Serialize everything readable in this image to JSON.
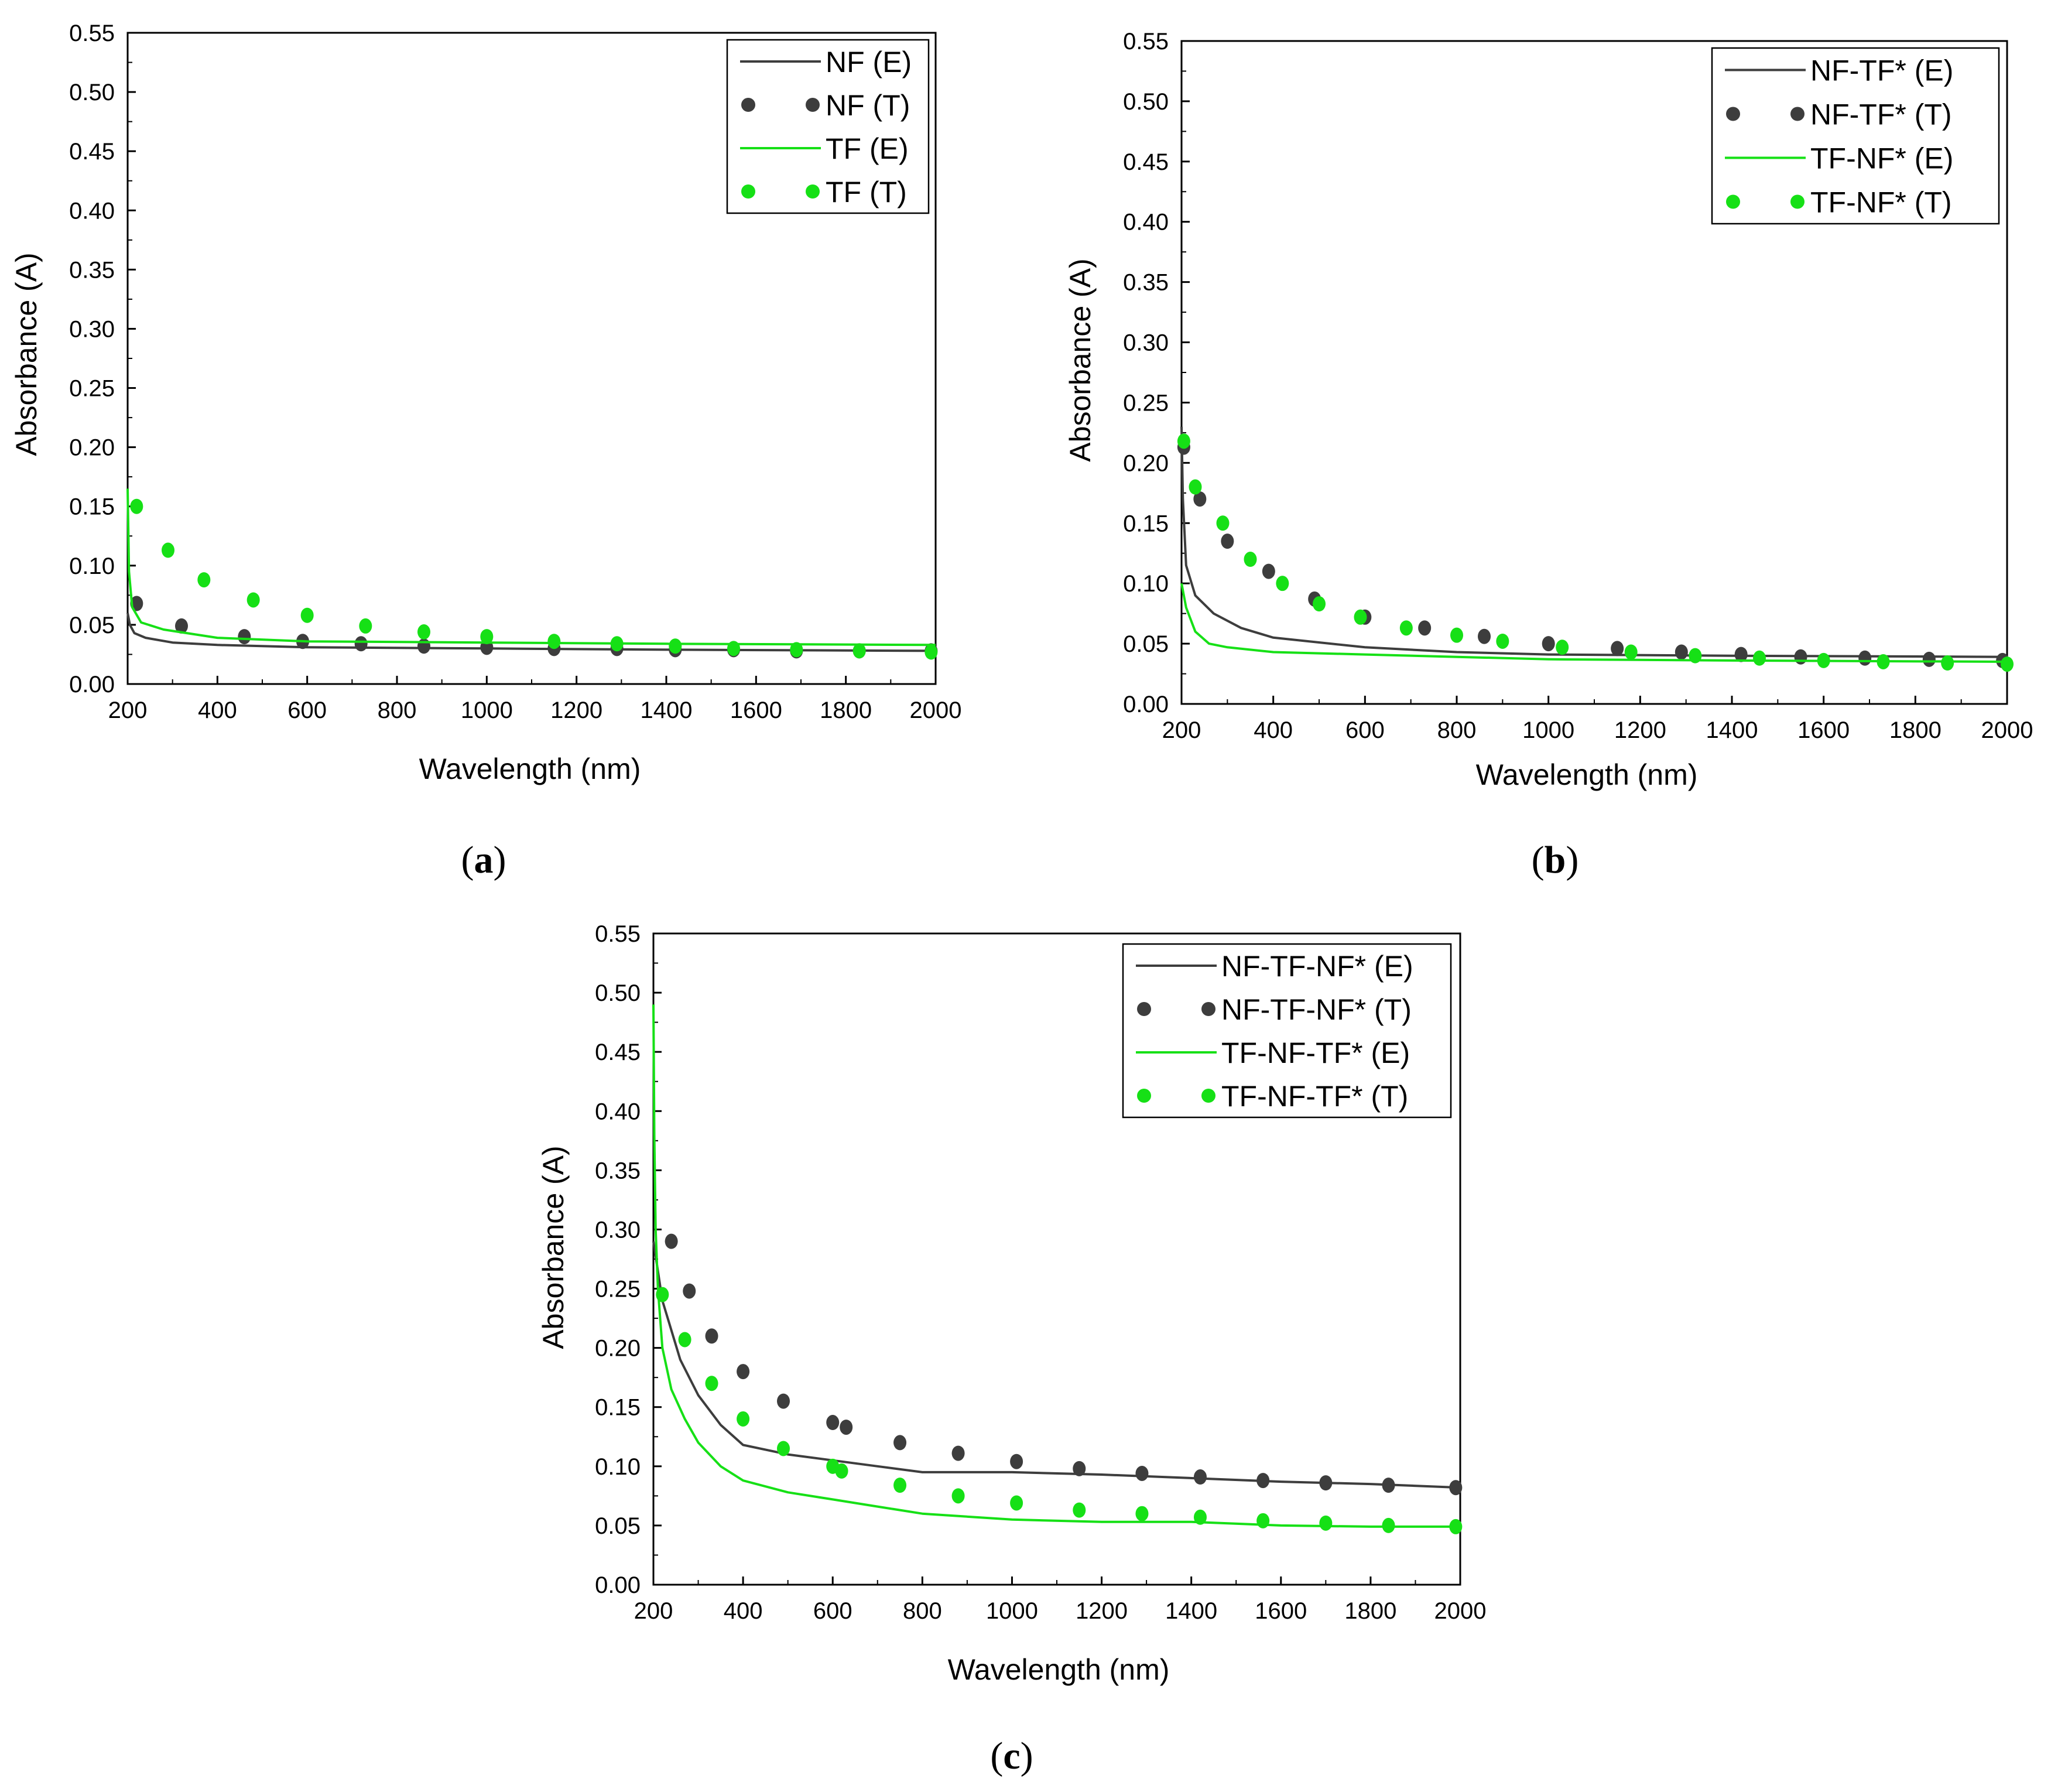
{
  "colors": {
    "dark": "#3d3d3d",
    "green": "#16e016"
  },
  "chart_data": [
    {
      "id": "a",
      "type": "line",
      "caption_letter": "a",
      "xlabel": "Wavelength (nm)",
      "ylabel": "Absorbance (A)",
      "xlim": [
        200,
        2000
      ],
      "ylim": [
        0,
        0.55
      ],
      "xticks": [
        "200",
        "400",
        "600",
        "800",
        "1000",
        "1200",
        "1400",
        "1600",
        "1800",
        "2000"
      ],
      "yticks": [
        "0.00",
        "0.05",
        "0.10",
        "0.15",
        "0.20",
        "0.25",
        "0.30",
        "0.35",
        "0.40",
        "0.45",
        "0.50",
        "0.55"
      ],
      "legend_position": "top-right",
      "series": [
        {
          "name": "NF (E)",
          "style": "solid",
          "color": "dark",
          "x": [
            200,
            205,
            215,
            240,
            300,
            400,
            600,
            1000,
            1400,
            2000
          ],
          "y": [
            0.06,
            0.05,
            0.043,
            0.039,
            0.035,
            0.033,
            0.031,
            0.03,
            0.029,
            0.028
          ]
        },
        {
          "name": "NF (T)",
          "style": "dotted",
          "color": "dark",
          "x": [
            220,
            320,
            460,
            590,
            720,
            860,
            1000,
            1150,
            1290,
            1420,
            1550,
            1690,
            1830,
            1990
          ],
          "y": [
            0.068,
            0.049,
            0.04,
            0.036,
            0.034,
            0.032,
            0.031,
            0.03,
            0.03,
            0.029,
            0.029,
            0.028,
            0.028,
            0.028
          ]
        },
        {
          "name": "TF (E)",
          "style": "solid",
          "color": "green",
          "x": [
            200,
            203,
            210,
            230,
            280,
            400,
            600,
            1000,
            1400,
            2000
          ],
          "y": [
            0.165,
            0.095,
            0.065,
            0.052,
            0.046,
            0.039,
            0.036,
            0.035,
            0.034,
            0.033
          ]
        },
        {
          "name": "TF (T)",
          "style": "dotted",
          "color": "green",
          "x": [
            220,
            290,
            370,
            480,
            600,
            730,
            860,
            1000,
            1150,
            1290,
            1420,
            1550,
            1690,
            1830,
            1990
          ],
          "y": [
            0.15,
            0.113,
            0.088,
            0.071,
            0.058,
            0.049,
            0.044,
            0.04,
            0.036,
            0.034,
            0.032,
            0.03,
            0.029,
            0.028,
            0.027
          ]
        }
      ]
    },
    {
      "id": "b",
      "type": "line",
      "caption_letter": "b",
      "xlabel": "Wavelength (nm)",
      "ylabel": "Absorbance (A)",
      "xlim": [
        200,
        2000
      ],
      "ylim": [
        0,
        0.55
      ],
      "xticks": [
        "200",
        "400",
        "600",
        "800",
        "1000",
        "1200",
        "1400",
        "1600",
        "1800",
        "2000"
      ],
      "yticks": [
        "0.00",
        "0.05",
        "0.10",
        "0.15",
        "0.20",
        "0.25",
        "0.30",
        "0.35",
        "0.40",
        "0.45",
        "0.50",
        "0.55"
      ],
      "legend_position": "top-right",
      "series": [
        {
          "name": "NF-TF* (E)",
          "style": "solid",
          "color": "dark",
          "x": [
            200,
            203,
            210,
            230,
            270,
            330,
            400,
            600,
            800,
            1000,
            1400,
            2000
          ],
          "y": [
            0.23,
            0.17,
            0.115,
            0.09,
            0.075,
            0.063,
            0.055,
            0.047,
            0.043,
            0.041,
            0.04,
            0.039
          ]
        },
        {
          "name": "NF-TF* (T)",
          "style": "dotted",
          "color": "dark",
          "x": [
            205,
            240,
            300,
            390,
            490,
            600,
            730,
            860,
            1000,
            1150,
            1290,
            1420,
            1550,
            1690,
            1830,
            1990
          ],
          "y": [
            0.213,
            0.17,
            0.135,
            0.11,
            0.087,
            0.072,
            0.063,
            0.056,
            0.05,
            0.046,
            0.043,
            0.041,
            0.039,
            0.038,
            0.037,
            0.036
          ]
        },
        {
          "name": "TF-NF* (E)",
          "style": "solid",
          "color": "green",
          "x": [
            200,
            210,
            230,
            260,
            300,
            400,
            600,
            1000,
            1400,
            2000
          ],
          "y": [
            0.1,
            0.08,
            0.06,
            0.05,
            0.047,
            0.043,
            0.041,
            0.037,
            0.036,
            0.035
          ]
        },
        {
          "name": "TF-NF* (T)",
          "style": "dotted",
          "color": "green",
          "x": [
            205,
            230,
            290,
            350,
            420,
            500,
            590,
            690,
            800,
            900,
            1030,
            1180,
            1320,
            1460,
            1600,
            1730,
            1870,
            2000
          ],
          "y": [
            0.218,
            0.18,
            0.15,
            0.12,
            0.1,
            0.083,
            0.072,
            0.063,
            0.057,
            0.052,
            0.047,
            0.043,
            0.04,
            0.038,
            0.036,
            0.035,
            0.034,
            0.033
          ]
        }
      ]
    },
    {
      "id": "c",
      "type": "line",
      "caption_letter": "c",
      "xlabel": "Wavelength (nm)",
      "ylabel": "Absorbance (A)",
      "xlim": [
        200,
        2000
      ],
      "ylim": [
        0,
        0.55
      ],
      "xticks": [
        "200",
        "400",
        "600",
        "800",
        "1000",
        "1200",
        "1400",
        "1600",
        "1800",
        "2000"
      ],
      "yticks": [
        "0.00",
        "0.05",
        "0.10",
        "0.15",
        "0.20",
        "0.25",
        "0.30",
        "0.35",
        "0.40",
        "0.45",
        "0.50",
        "0.55"
      ],
      "legend_position": "top-right",
      "series": [
        {
          "name": "NF-TF-NF* (E)",
          "style": "solid",
          "color": "dark",
          "x": [
            200,
            220,
            260,
            300,
            350,
            400,
            500,
            600,
            700,
            800,
            1000,
            1200,
            1400,
            1600,
            1800,
            2000
          ],
          "y": [
            0.29,
            0.24,
            0.19,
            0.16,
            0.135,
            0.118,
            0.11,
            0.105,
            0.1,
            0.095,
            0.095,
            0.093,
            0.09,
            0.087,
            0.085,
            0.082
          ]
        },
        {
          "name": "NF-TF-NF* (T)",
          "style": "dotted",
          "color": "dark",
          "x": [
            240,
            280,
            330,
            400,
            490,
            600,
            630,
            750,
            880,
            1010,
            1150,
            1290,
            1420,
            1560,
            1700,
            1840,
            1990
          ],
          "y": [
            0.29,
            0.248,
            0.21,
            0.18,
            0.155,
            0.137,
            0.133,
            0.12,
            0.111,
            0.104,
            0.098,
            0.094,
            0.091,
            0.088,
            0.086,
            0.084,
            0.082
          ]
        },
        {
          "name": "TF-NF-TF* (E)",
          "style": "solid",
          "color": "green",
          "x": [
            200,
            202,
            205,
            210,
            220,
            240,
            270,
            300,
            350,
            400,
            500,
            600,
            700,
            800,
            1000,
            1200,
            1400,
            1600,
            1800,
            2000
          ],
          "y": [
            0.49,
            0.38,
            0.3,
            0.25,
            0.2,
            0.165,
            0.14,
            0.12,
            0.1,
            0.088,
            0.078,
            0.072,
            0.066,
            0.06,
            0.055,
            0.053,
            0.053,
            0.05,
            0.049,
            0.049
          ]
        },
        {
          "name": "TF-NF-TF* (T)",
          "style": "dotted",
          "color": "green",
          "x": [
            220,
            270,
            330,
            400,
            490,
            600,
            620,
            750,
            880,
            1010,
            1150,
            1290,
            1420,
            1560,
            1700,
            1840,
            1990
          ],
          "y": [
            0.245,
            0.207,
            0.17,
            0.14,
            0.115,
            0.1,
            0.096,
            0.084,
            0.075,
            0.069,
            0.063,
            0.06,
            0.057,
            0.054,
            0.052,
            0.05,
            0.049
          ]
        }
      ]
    }
  ]
}
